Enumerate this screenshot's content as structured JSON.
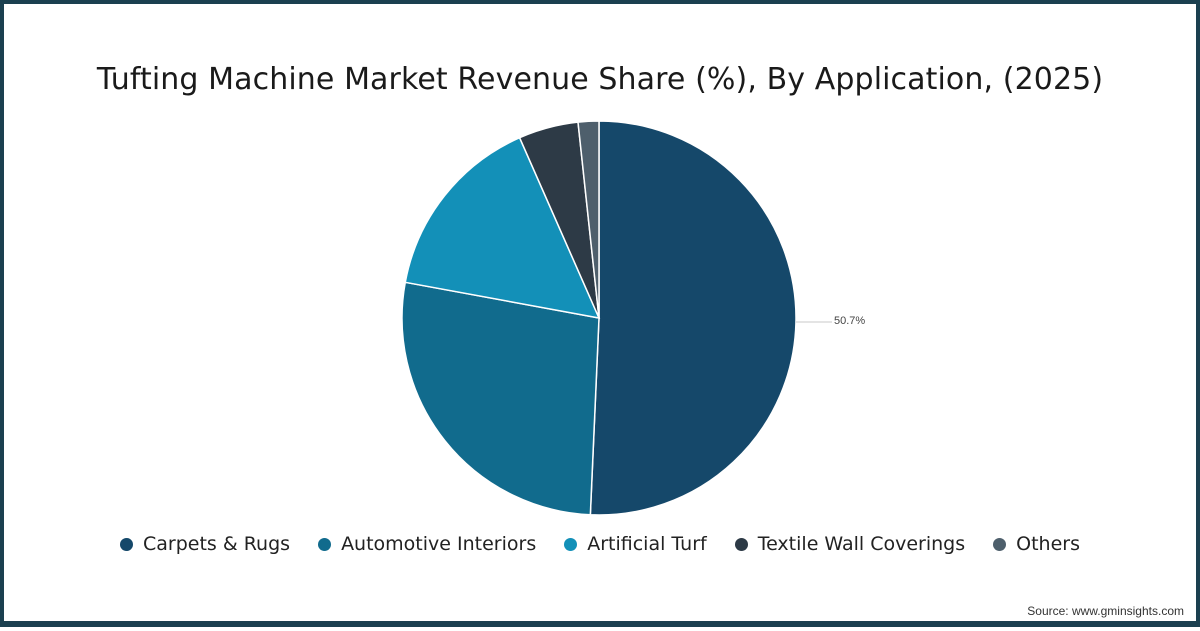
{
  "title": "Tufting Machine Market Revenue Share (%), By Application, (2025)",
  "source": "Source: www.gminsights.com",
  "chart_data": {
    "type": "pie",
    "title": "Tufting Machine Market Revenue Share (%), By Application, (2025)",
    "categories": [
      "Carpets & Rugs",
      "Automotive Interiors",
      "Artificial Turf",
      "Textile Wall Coverings",
      "Others"
    ],
    "values": [
      50.7,
      27.2,
      15.5,
      4.9,
      1.7
    ],
    "colors": [
      "#15486a",
      "#116b8d",
      "#1390b8",
      "#2d3a46",
      "#4e5f6c"
    ],
    "data_labels": [
      {
        "category": "Carpets & Rugs",
        "text": "50.7%"
      }
    ],
    "start_angle": 0,
    "direction": "clockwise",
    "legend_position": "bottom"
  },
  "legend": [
    {
      "label": "Carpets & Rugs",
      "color": "#15486a"
    },
    {
      "label": "Automotive Interiors",
      "color": "#116b8d"
    },
    {
      "label": "Artificial Turf",
      "color": "#1390b8"
    },
    {
      "label": "Textile Wall Coverings",
      "color": "#2d3a46"
    },
    {
      "label": "Others",
      "color": "#4e5f6c"
    }
  ],
  "label_carpets": "50.7%"
}
